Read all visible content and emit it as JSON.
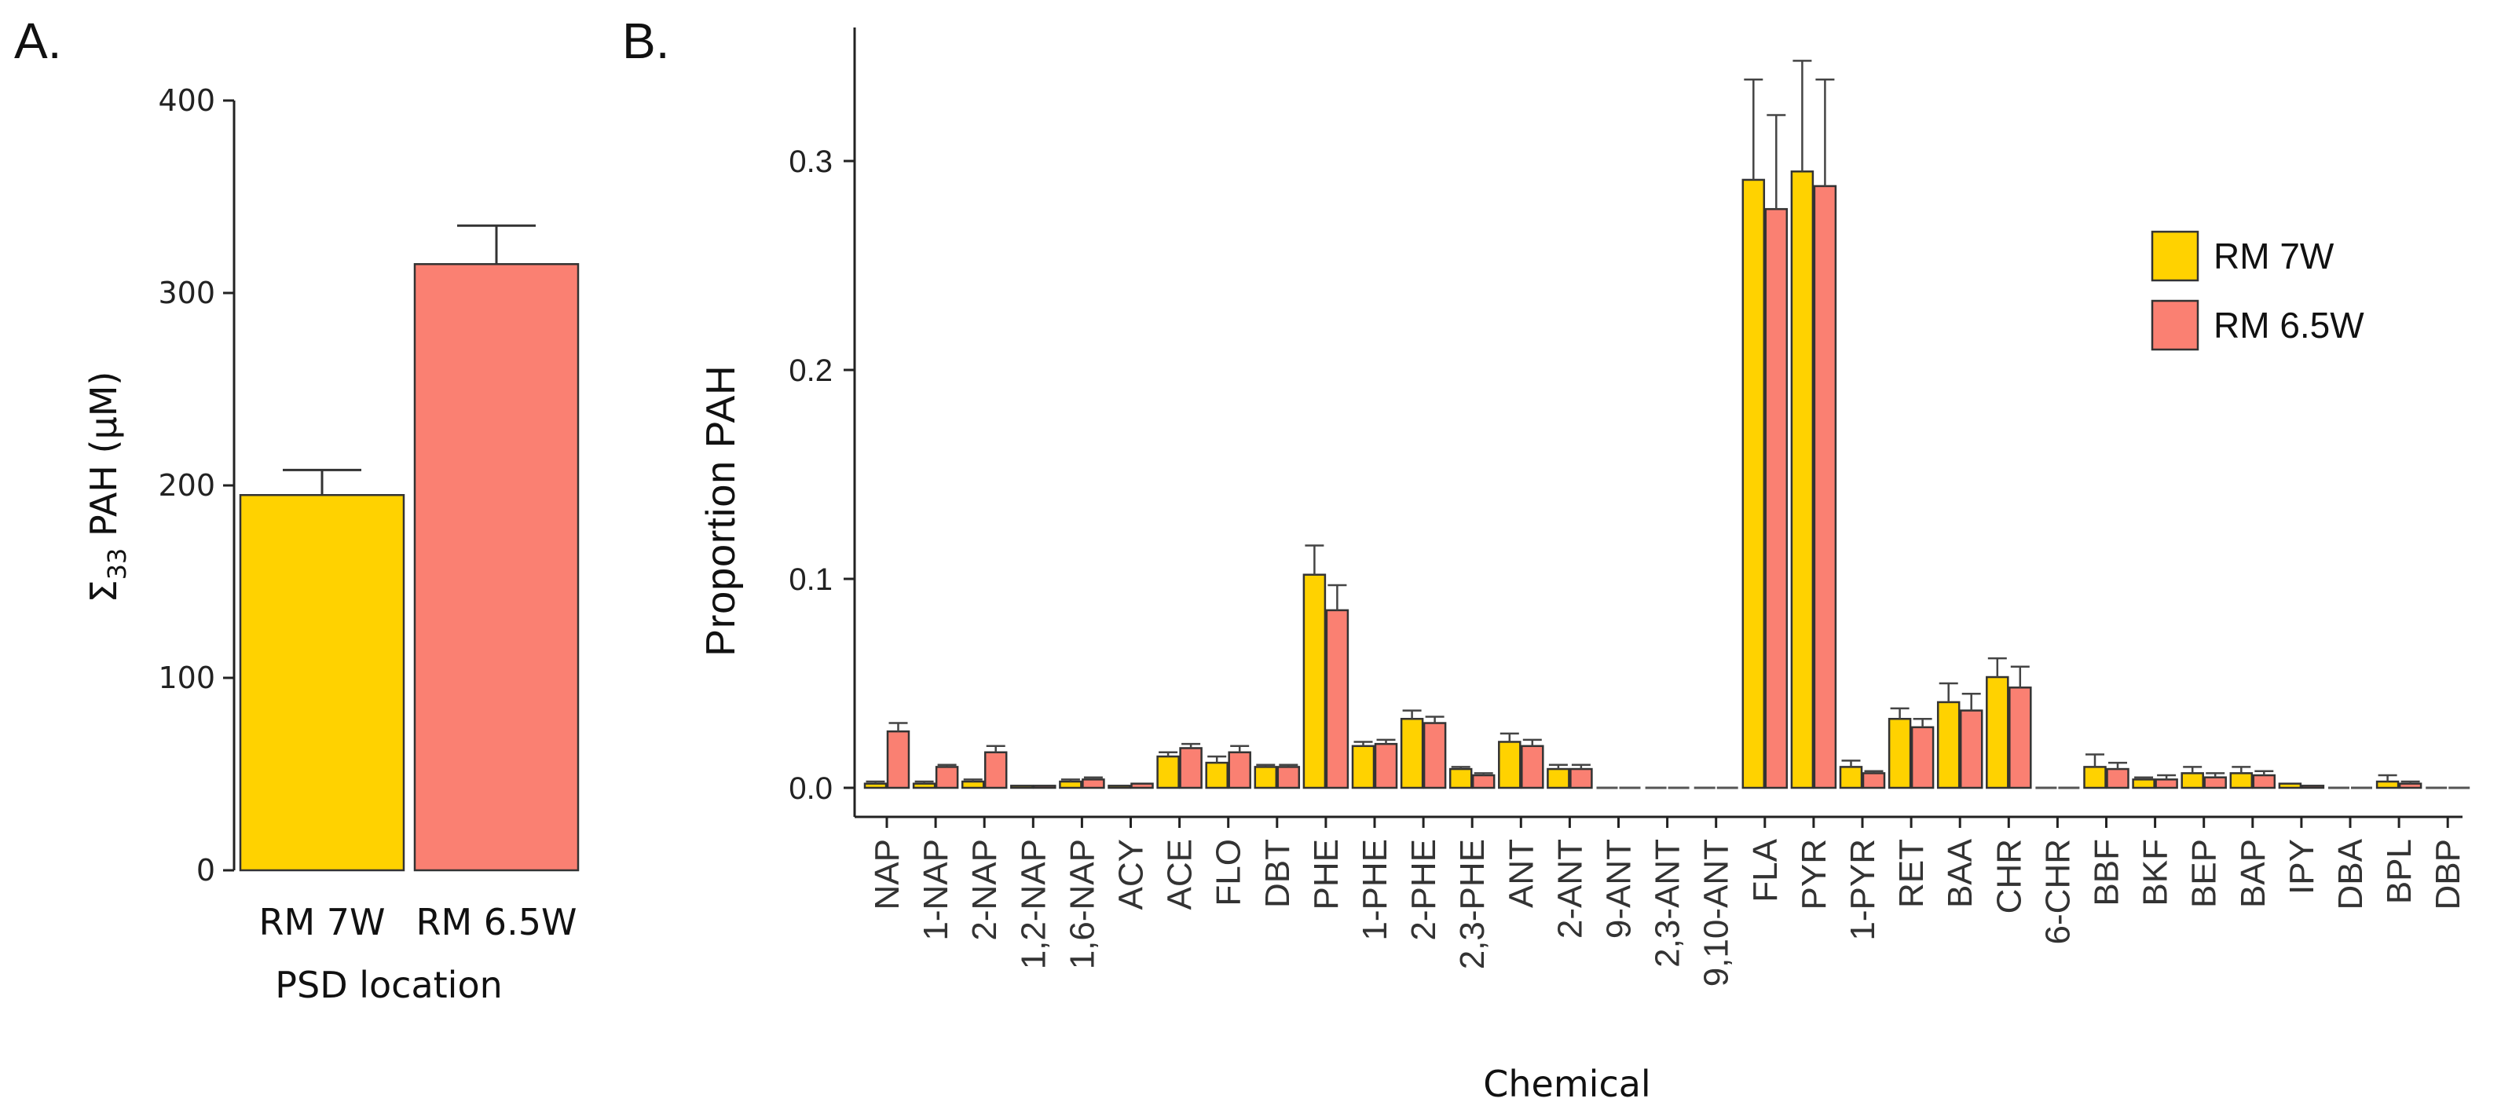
{
  "colors": {
    "rm7w": "#FFD200",
    "rm65w": "#FA8072"
  },
  "panel_a": {
    "letter": "A.",
    "xlabel": "PSD location",
    "ylabel_main": "Σ",
    "ylabel_sub": "33",
    "ylabel_rest": " PAH (µM)"
  },
  "panel_b": {
    "letter": "B.",
    "xlabel": "Chemical",
    "ylabel": "Proportion PAH"
  },
  "chart_data": [
    {
      "type": "bar",
      "panel": "A.",
      "categories": [
        "RM 7W",
        "RM 6.5W"
      ],
      "values": [
        195,
        315
      ],
      "errors": [
        13,
        20
      ],
      "ylim": [
        0,
        400
      ],
      "yticks": [
        "0",
        "100",
        "200",
        "300",
        "400"
      ],
      "xlabel": "PSD location",
      "ylabel": "Σ33 PAH (µM)"
    },
    {
      "type": "bar",
      "panel": "B.",
      "categories": [
        "NAP",
        "1-NAP",
        "2-NAP",
        "1,2-NAP",
        "1,6-NAP",
        "ACY",
        "ACE",
        "FLO",
        "DBT",
        "PHE",
        "1-PHE",
        "2-PHE",
        "2,3-PHE",
        "ANT",
        "2-ANT",
        "9-ANT",
        "2,3-ANT",
        "9,10-ANT",
        "FLA",
        "PYR",
        "1-PYR",
        "RET",
        "BAA",
        "CHR",
        "6-CHR",
        "BBF",
        "BKF",
        "BEP",
        "BAP",
        "IPY",
        "DBA",
        "BPL",
        "DBP"
      ],
      "series": [
        {
          "name": "RM 7W",
          "values": [
            0.002,
            0.002,
            0.003,
            0.001,
            0.003,
            0.001,
            0.015,
            0.012,
            0.01,
            0.102,
            0.02,
            0.033,
            0.009,
            0.022,
            0.009,
            0,
            0,
            0,
            0.291,
            0.295,
            0.01,
            0.033,
            0.041,
            0.053,
            0,
            0.01,
            0.004,
            0.007,
            0.007,
            0.002,
            0,
            0.003,
            0
          ],
          "errors": [
            0.001,
            0.001,
            0.001,
            0,
            0.001,
            0,
            0.002,
            0.003,
            0.001,
            0.014,
            0.002,
            0.004,
            0.001,
            0.004,
            0.002,
            0,
            0,
            0,
            0.048,
            0.053,
            0.003,
            0.005,
            0.009,
            0.009,
            0,
            0.006,
            0.001,
            0.003,
            0.003,
            0,
            0,
            0.003,
            0
          ]
        },
        {
          "name": "RM 6.5W",
          "values": [
            0.027,
            0.01,
            0.017,
            0.001,
            0.004,
            0.002,
            0.019,
            0.017,
            0.01,
            0.085,
            0.021,
            0.031,
            0.006,
            0.02,
            0.009,
            0,
            0,
            0,
            0.277,
            0.288,
            0.007,
            0.029,
            0.037,
            0.048,
            0,
            0.009,
            0.004,
            0.005,
            0.006,
            0.001,
            0,
            0.002,
            0
          ],
          "errors": [
            0.004,
            0.001,
            0.003,
            0,
            0.001,
            0,
            0.002,
            0.003,
            0.001,
            0.012,
            0.002,
            0.003,
            0.001,
            0.003,
            0.002,
            0,
            0,
            0,
            0.045,
            0.051,
            0.001,
            0.004,
            0.008,
            0.01,
            0,
            0.003,
            0.002,
            0.002,
            0.002,
            0,
            0,
            0.001,
            0
          ]
        }
      ],
      "ylim": [
        0,
        0.36
      ],
      "yticks": [
        "0.0",
        "0.1",
        "0.2",
        "0.3"
      ],
      "xlabel": "Chemical",
      "ylabel": "Proportion PAH",
      "legend": [
        "RM 7W",
        "RM 6.5W"
      ],
      "legend_position": "top-right"
    }
  ]
}
